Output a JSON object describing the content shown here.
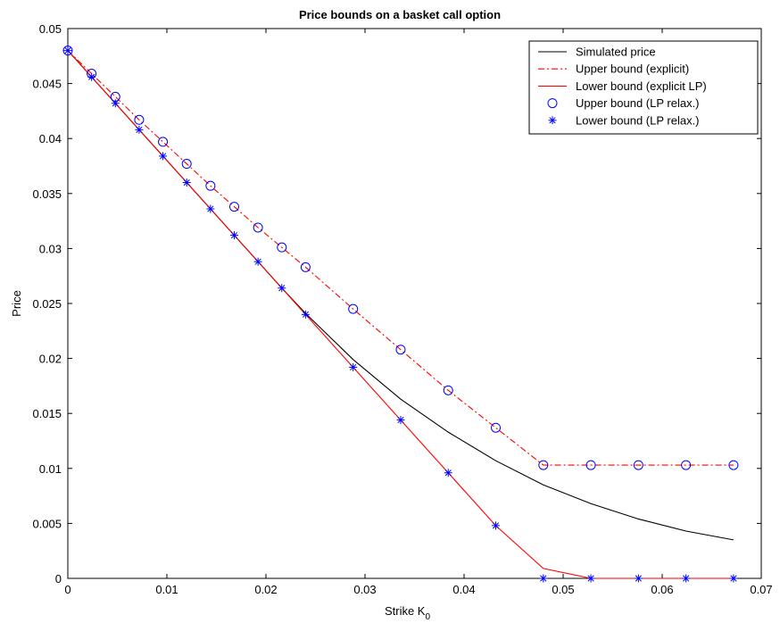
{
  "chart_data": {
    "type": "line",
    "title": "Price bounds on a basket call option",
    "xlabel_main": "Strike K",
    "xlabel_sub": "0",
    "ylabel": "Price",
    "xlim": [
      0,
      0.07
    ],
    "ylim": [
      0,
      0.05
    ],
    "xticks": [
      0,
      0.01,
      0.02,
      0.03,
      0.04,
      0.05,
      0.06,
      0.07
    ],
    "xtick_labels": [
      "0",
      "0.01",
      "0.02",
      "0.03",
      "0.04",
      "0.05",
      "0.06",
      "0.07"
    ],
    "yticks": [
      0,
      0.005,
      0.01,
      0.015,
      0.02,
      0.025,
      0.03,
      0.035,
      0.04,
      0.045,
      0.05
    ],
    "ytick_labels": [
      "0",
      "0.005",
      "0.01",
      "0.015",
      "0.02",
      "0.025",
      "0.03",
      "0.035",
      "0.04",
      "0.045",
      "0.05"
    ],
    "grid": false,
    "legend_position": "top-right",
    "colors": {
      "black": "#000000",
      "red": "#ff0000",
      "blue": "#0000ff"
    },
    "series": [
      {
        "name": "Simulated price",
        "style": "line",
        "dash": "solid",
        "color": "#000000",
        "x": [
          0,
          0.0024,
          0.0048,
          0.0072,
          0.0096,
          0.012,
          0.0144,
          0.0168,
          0.0192,
          0.0216,
          0.024,
          0.0288,
          0.0336,
          0.0384,
          0.0432,
          0.048,
          0.0528,
          0.0576,
          0.0624,
          0.0672
        ],
        "y": [
          0.048,
          0.0456,
          0.0432,
          0.0408,
          0.0384,
          0.036,
          0.0336,
          0.0312,
          0.0288,
          0.0264,
          0.0241,
          0.0199,
          0.0163,
          0.0133,
          0.0107,
          0.0085,
          0.0068,
          0.0054,
          0.0043,
          0.0035
        ]
      },
      {
        "name": "Upper bound (explicit)",
        "style": "line",
        "dash": "dashdot",
        "color": "#ff0000",
        "x": [
          0,
          0.0024,
          0.0048,
          0.0072,
          0.0096,
          0.012,
          0.0144,
          0.0168,
          0.0192,
          0.0216,
          0.024,
          0.0288,
          0.0336,
          0.0384,
          0.0432,
          0.048,
          0.0528,
          0.0576,
          0.0624,
          0.0672
        ],
        "y": [
          0.048,
          0.0459,
          0.0438,
          0.0417,
          0.0397,
          0.0377,
          0.0357,
          0.0338,
          0.0319,
          0.0301,
          0.0283,
          0.0245,
          0.0208,
          0.0171,
          0.0137,
          0.0103,
          0.0103,
          0.0103,
          0.0103,
          0.0103
        ]
      },
      {
        "name": "Lower bound (explicit LP)",
        "style": "line",
        "dash": "solid",
        "color": "#ff0000",
        "x": [
          0,
          0.0024,
          0.0048,
          0.0072,
          0.0096,
          0.012,
          0.0144,
          0.0168,
          0.0192,
          0.0216,
          0.024,
          0.0288,
          0.0336,
          0.0384,
          0.0432,
          0.048,
          0.0528,
          0.0576,
          0.0624,
          0.0672
        ],
        "y": [
          0.048,
          0.0456,
          0.0432,
          0.0408,
          0.0384,
          0.036,
          0.0336,
          0.0312,
          0.0288,
          0.0264,
          0.024,
          0.0192,
          0.0144,
          0.0096,
          0.0048,
          0.0009,
          0,
          0,
          0,
          0
        ]
      },
      {
        "name": "Upper bound (LP relax.)",
        "style": "marker",
        "marker": "circle",
        "color": "#0000ff",
        "x": [
          0,
          0.0024,
          0.0048,
          0.0072,
          0.0096,
          0.012,
          0.0144,
          0.0168,
          0.0192,
          0.0216,
          0.024,
          0.0288,
          0.0336,
          0.0384,
          0.0432,
          0.048,
          0.0528,
          0.0576,
          0.0624,
          0.0672
        ],
        "y": [
          0.048,
          0.0459,
          0.0438,
          0.0417,
          0.0397,
          0.0377,
          0.0357,
          0.0338,
          0.0319,
          0.0301,
          0.0283,
          0.0245,
          0.0208,
          0.0171,
          0.0137,
          0.0103,
          0.0103,
          0.0103,
          0.0103,
          0.0103
        ]
      },
      {
        "name": "Lower bound (LP relax.)",
        "style": "marker",
        "marker": "star",
        "color": "#0000ff",
        "x": [
          0,
          0.0024,
          0.0048,
          0.0072,
          0.0096,
          0.012,
          0.0144,
          0.0168,
          0.0192,
          0.0216,
          0.024,
          0.0288,
          0.0336,
          0.0384,
          0.0432,
          0.048,
          0.0528,
          0.0576,
          0.0624,
          0.0672
        ],
        "y": [
          0.048,
          0.0456,
          0.0432,
          0.0408,
          0.0384,
          0.036,
          0.0336,
          0.0312,
          0.0288,
          0.0264,
          0.024,
          0.0192,
          0.0144,
          0.0096,
          0.0048,
          0,
          0,
          0,
          0,
          0
        ]
      }
    ]
  }
}
